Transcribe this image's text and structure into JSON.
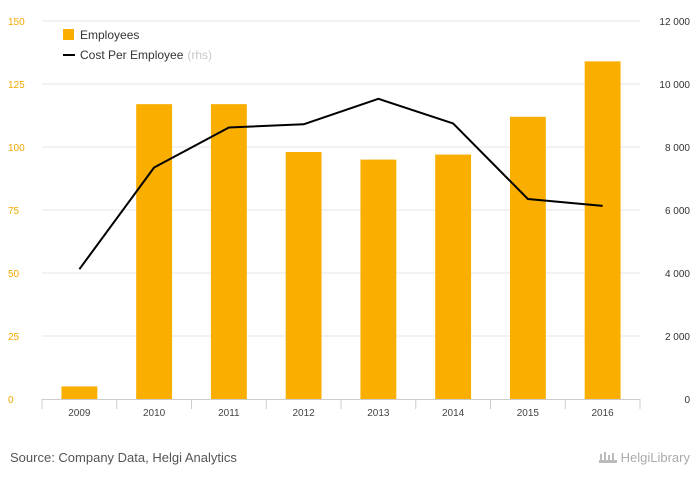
{
  "chart_data": {
    "type": "bar",
    "categories": [
      "2009",
      "2010",
      "2011",
      "2012",
      "2013",
      "2014",
      "2015",
      "2016"
    ],
    "series": [
      {
        "name": "Employees",
        "type": "bar",
        "axis": "left",
        "color": "#f9ae00",
        "values": [
          5,
          117,
          117,
          98,
          95,
          97,
          112,
          134
        ]
      },
      {
        "name": "Cost Per Employee",
        "type": "line",
        "axis": "right",
        "color": "#000000",
        "values": [
          4120,
          7350,
          8620,
          8720,
          9530,
          8750,
          6350,
          6130
        ]
      }
    ],
    "ylim": [
      0,
      150
    ],
    "y2lim": [
      0,
      12000
    ],
    "yticks": [
      "0",
      "25",
      "50",
      "75",
      "100",
      "125",
      "150"
    ],
    "y2ticks": [
      "0",
      "2 000",
      "4 000",
      "6 000",
      "8 000",
      "10 000",
      "12 000"
    ],
    "legend_position": "top-left",
    "legend": [
      {
        "label": "Employees",
        "suffix": ""
      },
      {
        "label": "Cost Per Employee",
        "suffix": "(rhs)"
      }
    ],
    "grid": true
  },
  "source": "Source: Company Data, Helgi Analytics",
  "brand": "HelgiLibrary",
  "colors": {
    "bar": "#f9ae00",
    "line": "#000000",
    "left_axis": "#f2a900",
    "grid": "#e6e6e6"
  }
}
